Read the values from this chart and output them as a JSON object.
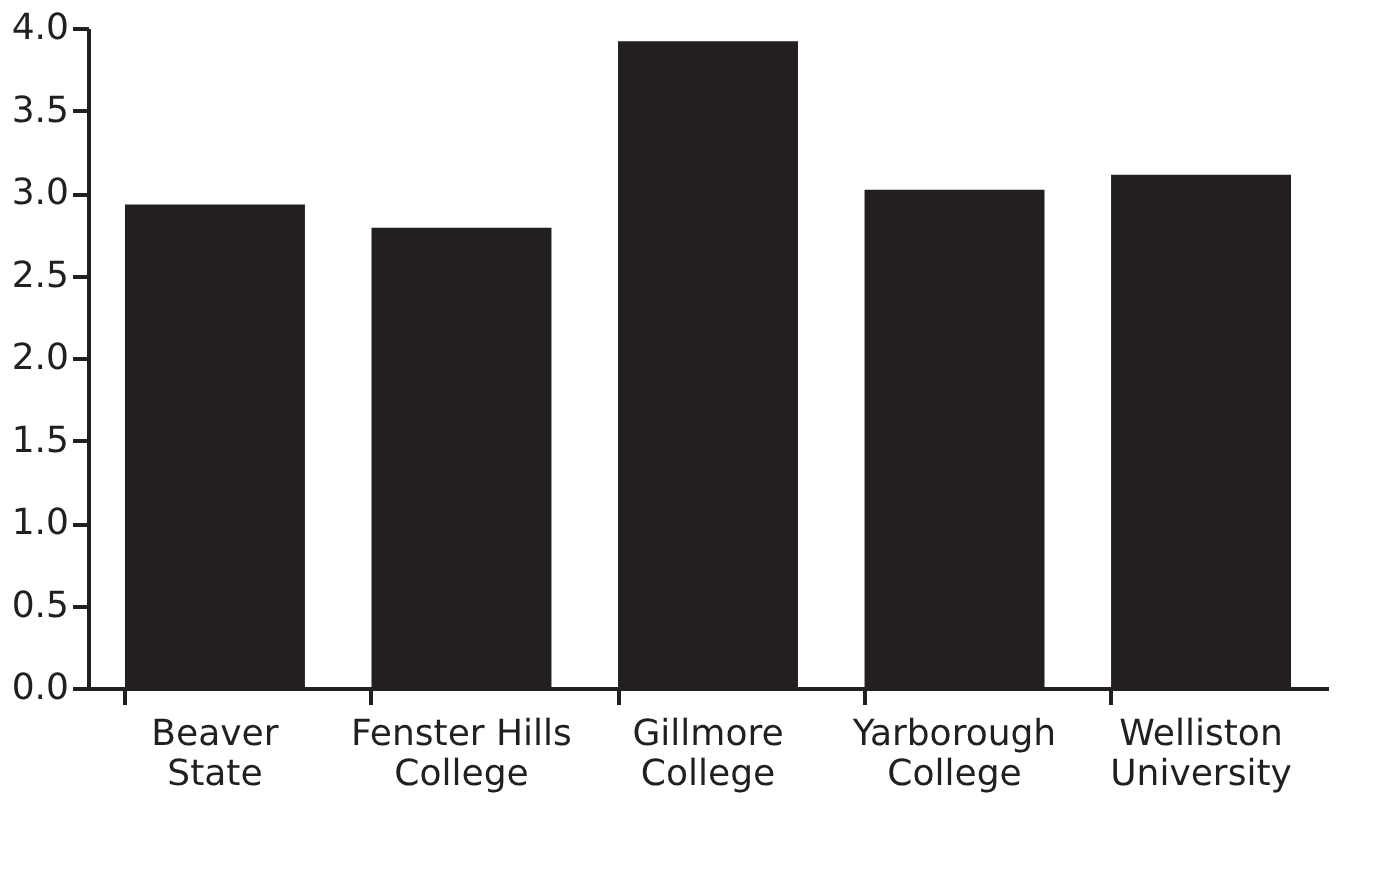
{
  "chart_data": {
    "type": "bar",
    "categories": [
      "Beaver\nState",
      "Fenster Hills\nCollege",
      "Gillmore\nCollege",
      "Yarborough\nCollege",
      "Welliston\nUniversity"
    ],
    "values": [
      2.93,
      2.79,
      3.92,
      3.02,
      3.11
    ],
    "color": "#231f20",
    "ylim": [
      0,
      4
    ],
    "yticks": [
      {
        "value": 0,
        "label": "0.0"
      },
      {
        "value": 0.5,
        "label": "0.5"
      },
      {
        "value": 1,
        "label": "1.0"
      },
      {
        "value": 1.5,
        "label": "1.5"
      },
      {
        "value": 2,
        "label": "2.0"
      },
      {
        "value": 2.5,
        "label": "2.5"
      },
      {
        "value": 3,
        "label": "3.0"
      },
      {
        "value": 3.5,
        "label": "3.5"
      },
      {
        "value": 4,
        "label": "4.0"
      }
    ],
    "grid": false
  }
}
